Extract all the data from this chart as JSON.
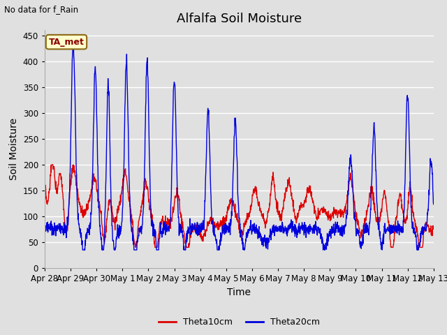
{
  "title": "Alfalfa Soil Moisture",
  "xlabel": "Time",
  "ylabel": "Soil Moisture",
  "top_left_text": "No data for f_Rain",
  "annotation_text": "TA_met",
  "legend_labels": [
    "Theta10cm",
    "Theta20cm"
  ],
  "legend_colors": [
    "#dd0000",
    "#0000dd"
  ],
  "ylim": [
    0,
    460
  ],
  "yticks": [
    0,
    50,
    100,
    150,
    200,
    250,
    300,
    350,
    400,
    450
  ],
  "background_color": "#e0e0e0",
  "plot_bg_color": "#e0e0e0",
  "grid_color": "#ffffff",
  "title_fontsize": 13,
  "axis_label_fontsize": 10,
  "tick_fontsize": 8.5
}
